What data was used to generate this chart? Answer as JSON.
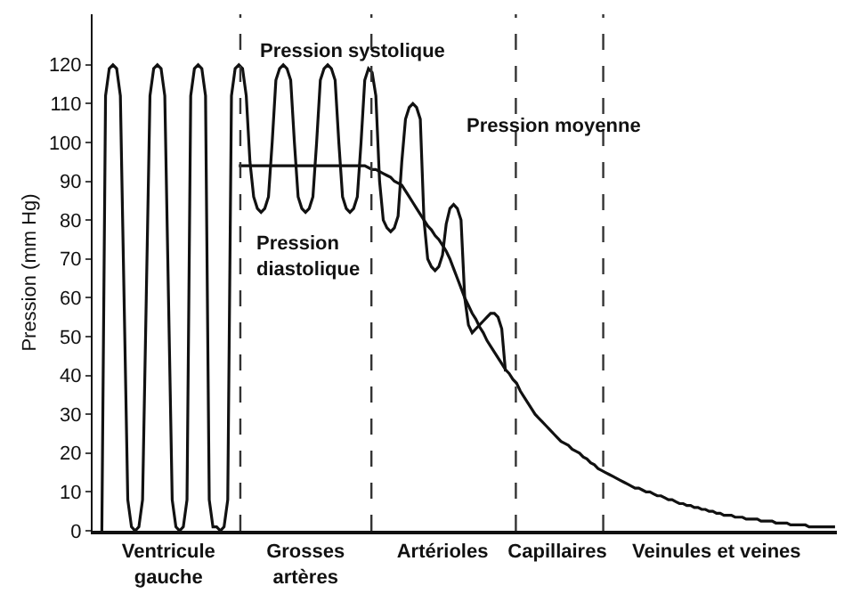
{
  "chart_data": {
    "type": "line",
    "ylabel": "Pression (mm Hg)",
    "ylim": [
      0,
      133
    ],
    "yticks": [
      0,
      10,
      20,
      30,
      40,
      50,
      60,
      70,
      80,
      90,
      100,
      110,
      120
    ],
    "marker": "none",
    "line_style": "solid",
    "categories": [
      null,
      null,
      null,
      null,
      null,
      null,
      null,
      null,
      null,
      null,
      null,
      null,
      null,
      null,
      null,
      null,
      null,
      null,
      null,
      null,
      "Ventricule\ngauche",
      null,
      null,
      null,
      null,
      null,
      null,
      null,
      null,
      null,
      null,
      null,
      null,
      null,
      null,
      null,
      null,
      null,
      null,
      null,
      null,
      null,
      null,
      null,
      null,
      null,
      null,
      null,
      null,
      null,
      null,
      null,
      null,
      null,
      null,
      null,
      null,
      "Grosses\nartères",
      null,
      null,
      null,
      null,
      null,
      null,
      null,
      null,
      null,
      null,
      null,
      null,
      null,
      null,
      null,
      null,
      null,
      null,
      null,
      null,
      null,
      null,
      null,
      null,
      null,
      null,
      null,
      null,
      null,
      null,
      null,
      null,
      null,
      null,
      null,
      null,
      "Artérioles",
      null,
      null,
      null,
      null,
      null,
      null,
      null,
      null,
      null,
      null,
      null,
      null,
      null,
      null,
      null,
      null,
      null,
      null,
      null,
      null,
      null,
      null,
      null,
      null,
      null,
      null,
      null,
      null,
      null,
      null,
      "Capillaires",
      null,
      null,
      null,
      null,
      null,
      null,
      null,
      null,
      null,
      null,
      null,
      null,
      null,
      null,
      null,
      null,
      null,
      null,
      null,
      null,
      null,
      null,
      null,
      null,
      null,
      null,
      null,
      null,
      null,
      null,
      null,
      null,
      null,
      null,
      null,
      null,
      null,
      null,
      null,
      null,
      null,
      null,
      "Veinules et veines",
      null,
      null,
      null,
      null,
      null,
      null,
      null,
      null,
      null,
      null,
      null,
      null,
      null,
      null,
      null,
      null,
      null,
      null,
      null,
      null,
      null,
      null,
      null,
      null,
      null,
      null,
      null,
      null,
      null,
      null,
      null,
      null
    ],
    "series": [
      {
        "color": "#111111",
        "values": [
          null,
          null,
          0,
          112,
          119,
          120,
          119,
          112,
          60,
          8,
          1,
          0,
          1,
          8,
          60,
          112,
          119,
          120,
          119,
          112,
          60,
          8,
          1,
          0,
          1,
          8,
          112,
          119,
          120,
          119,
          112,
          8,
          1,
          1,
          0,
          1,
          8,
          112,
          119,
          120,
          119,
          112,
          95,
          86,
          83,
          82,
          83,
          86,
          100,
          116,
          119,
          120,
          119,
          116,
          100,
          86,
          83,
          82,
          83,
          86,
          100,
          116,
          119,
          120,
          119,
          116,
          100,
          86,
          83,
          82,
          83,
          86,
          100,
          116,
          119,
          118,
          112,
          90,
          80,
          78,
          77,
          78,
          81,
          95,
          106,
          109,
          110,
          109,
          106,
          80,
          70,
          68,
          67,
          68,
          71,
          79,
          83,
          84,
          83,
          80,
          60,
          53,
          51,
          52,
          53,
          54,
          55,
          56,
          56,
          55,
          52,
          41,
          null,
          null,
          null,
          null,
          null,
          null,
          null,
          null,
          null,
          null,
          null,
          null,
          null,
          null,
          null,
          null,
          null,
          null,
          null,
          null,
          null,
          null,
          null,
          null,
          null,
          null,
          null,
          null,
          null,
          null,
          null,
          null,
          null,
          null,
          null,
          null,
          null,
          null,
          null,
          null,
          null,
          null,
          null,
          null,
          null,
          null,
          null,
          null,
          null,
          null,
          null,
          null,
          null,
          null,
          null,
          null,
          null,
          null,
          null,
          null,
          null,
          null,
          null,
          null,
          null,
          null,
          null,
          null,
          null,
          null,
          null,
          null,
          null,
          null,
          null,
          null,
          null,
          null,
          null,
          null,
          null,
          null,
          null,
          null,
          null,
          null,
          null,
          null,
          null
        ]
      },
      {
        "color": "#111111",
        "values": [
          null,
          null,
          null,
          null,
          null,
          null,
          null,
          null,
          null,
          null,
          null,
          null,
          null,
          null,
          null,
          null,
          null,
          null,
          null,
          null,
          null,
          null,
          null,
          null,
          null,
          null,
          null,
          null,
          null,
          null,
          null,
          null,
          null,
          null,
          null,
          null,
          null,
          null,
          null,
          94,
          94,
          94,
          94,
          94,
          94,
          94,
          94,
          94,
          94,
          94,
          94,
          94,
          94,
          94,
          94,
          94,
          94,
          94,
          94,
          94,
          94,
          94,
          94,
          94,
          94,
          94,
          94,
          94,
          94,
          94,
          94,
          94,
          94,
          94,
          93.5,
          93,
          93,
          92.5,
          92,
          91.5,
          91,
          90,
          89.5,
          89,
          87.5,
          86,
          84.5,
          83,
          81.5,
          80,
          78.5,
          77.5,
          76,
          75,
          73.5,
          72,
          70,
          67.5,
          65,
          62.5,
          60,
          58,
          56,
          54.5,
          52.5,
          51,
          49,
          47.5,
          46,
          44.5,
          43,
          41.5,
          40.5,
          39,
          38,
          36,
          34.5,
          33,
          31.5,
          30,
          29,
          28,
          27,
          26,
          25,
          24,
          23,
          22.5,
          22,
          21,
          20.5,
          20,
          19,
          18.5,
          17.5,
          17,
          16,
          15.5,
          15,
          14.5,
          14,
          13.5,
          13,
          12.5,
          12,
          11.5,
          11,
          11,
          10.5,
          10,
          10,
          9.5,
          9,
          9,
          8.5,
          8,
          8,
          7.5,
          7,
          7,
          6.5,
          6.5,
          6,
          6,
          5.5,
          5.5,
          5,
          5,
          4.5,
          4.5,
          4,
          4,
          4,
          3.5,
          3.5,
          3.5,
          3,
          3,
          3,
          3,
          2.5,
          2.5,
          2.5,
          2.5,
          2,
          2,
          2,
          2,
          1.5,
          1.5,
          1.5,
          1.5,
          1.5,
          1,
          1,
          1,
          1,
          1,
          1,
          1,
          1
        ]
      }
    ],
    "annotations": [
      "Pression systolique",
      "Pression moyenne",
      "Pression\ndiastolique"
    ]
  }
}
